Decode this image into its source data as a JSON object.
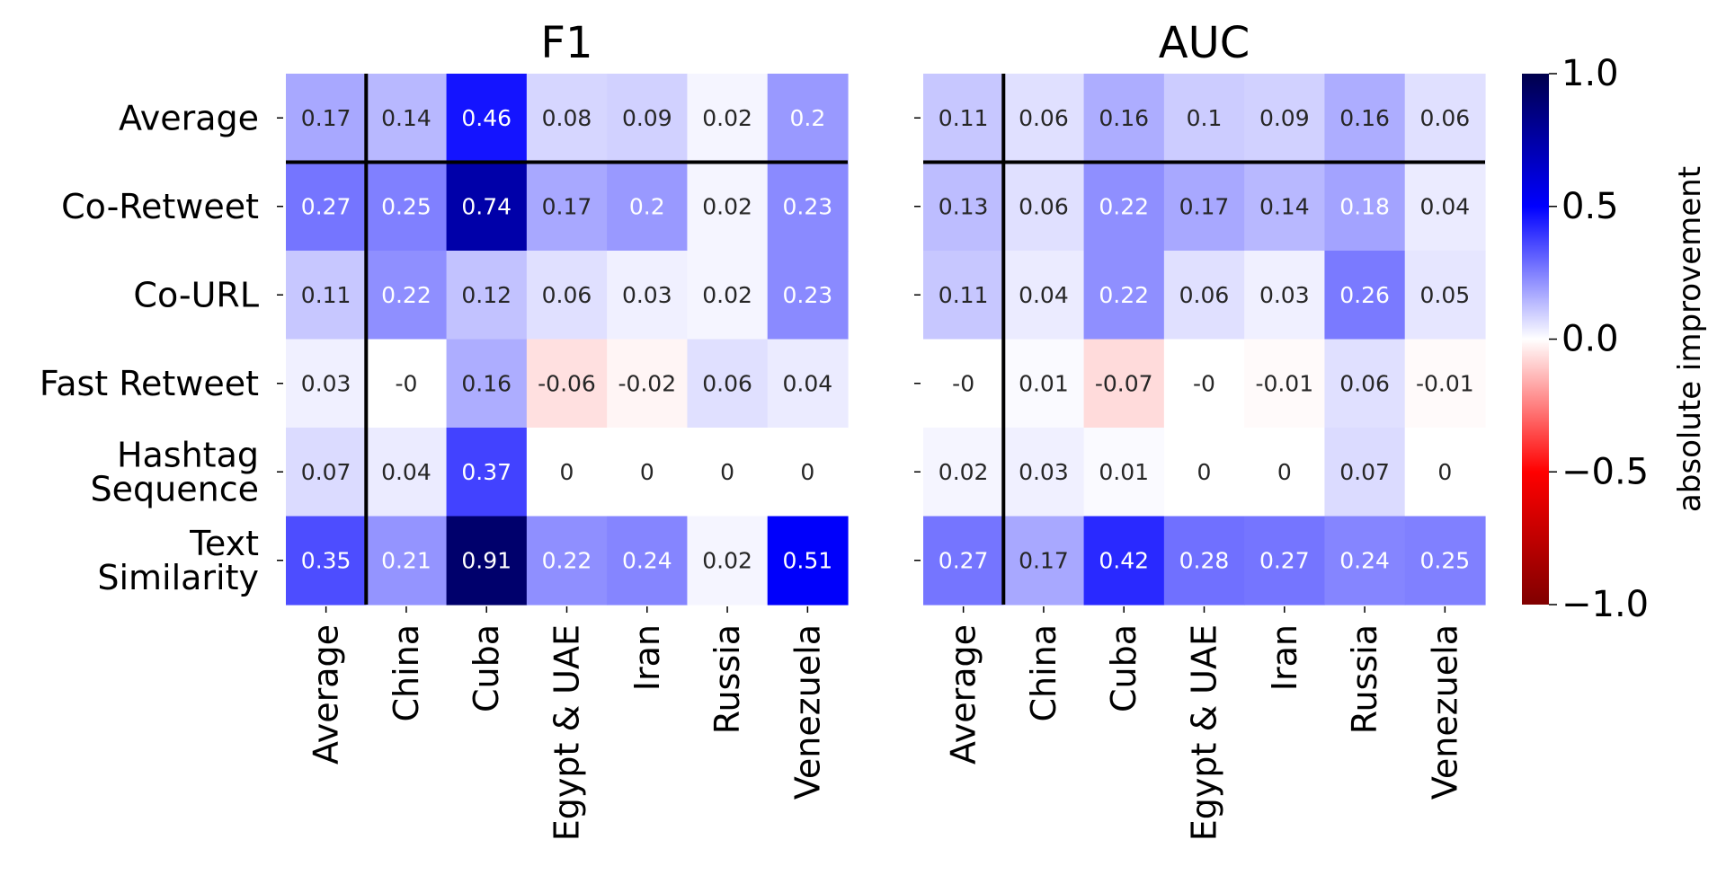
{
  "chart_data": [
    {
      "type": "heatmap",
      "title": "F1",
      "rows": [
        "Average",
        "Co-Retweet",
        "Co-URL",
        "Fast Retweet",
        "Hashtag\nSequence",
        "Text\nSimilarity"
      ],
      "columns": [
        "Average",
        "China",
        "Cuba",
        "Egypt & UAE",
        "Iran",
        "Russia",
        "Venezuela"
      ],
      "values": [
        [
          0.17,
          0.14,
          0.46,
          0.08,
          0.09,
          0.02,
          0.2
        ],
        [
          0.27,
          0.25,
          0.74,
          0.17,
          0.2,
          0.02,
          0.23
        ],
        [
          0.11,
          0.22,
          0.12,
          0.06,
          0.03,
          0.02,
          0.23
        ],
        [
          0.03,
          -0.0,
          0.16,
          -0.06,
          -0.02,
          0.06,
          0.04
        ],
        [
          0.07,
          0.04,
          0.37,
          0.0,
          0.0,
          0.0,
          0.0
        ],
        [
          0.35,
          0.21,
          0.91,
          0.22,
          0.24,
          0.02,
          0.51
        ]
      ],
      "labels": [
        [
          "0.17",
          "0.14",
          "0.46",
          "0.08",
          "0.09",
          "0.02",
          "0.2"
        ],
        [
          "0.27",
          "0.25",
          "0.74",
          "0.17",
          "0.2",
          "0.02",
          "0.23"
        ],
        [
          "0.11",
          "0.22",
          "0.12",
          "0.06",
          "0.03",
          "0.02",
          "0.23"
        ],
        [
          "0.03",
          "-0",
          "0.16",
          "-0.06",
          "-0.02",
          "0.06",
          "0.04"
        ],
        [
          "0.07",
          "0.04",
          "0.37",
          "0",
          "0",
          "0",
          "0"
        ],
        [
          "0.35",
          "0.21",
          "0.91",
          "0.22",
          "0.24",
          "0.02",
          "0.51"
        ]
      ],
      "separators": "after first row and first column"
    },
    {
      "type": "heatmap",
      "title": "AUC",
      "rows": [
        "Average",
        "Co-Retweet",
        "Co-URL",
        "Fast Retweet",
        "Hashtag\nSequence",
        "Text\nSimilarity"
      ],
      "columns": [
        "Average",
        "China",
        "Cuba",
        "Egypt & UAE",
        "Iran",
        "Russia",
        "Venezuela"
      ],
      "values": [
        [
          0.11,
          0.06,
          0.16,
          0.1,
          0.09,
          0.16,
          0.06
        ],
        [
          0.13,
          0.06,
          0.22,
          0.17,
          0.14,
          0.18,
          0.04
        ],
        [
          0.11,
          0.04,
          0.22,
          0.06,
          0.03,
          0.26,
          0.05
        ],
        [
          -0.0,
          0.01,
          -0.07,
          -0.0,
          -0.01,
          0.06,
          -0.01
        ],
        [
          0.02,
          0.03,
          0.01,
          0.0,
          0.0,
          0.07,
          0.0
        ],
        [
          0.27,
          0.17,
          0.42,
          0.28,
          0.27,
          0.24,
          0.25
        ]
      ],
      "labels": [
        [
          "0.11",
          "0.06",
          "0.16",
          "0.1",
          "0.09",
          "0.16",
          "0.06"
        ],
        [
          "0.13",
          "0.06",
          "0.22",
          "0.17",
          "0.14",
          "0.18",
          "0.04"
        ],
        [
          "0.11",
          "0.04",
          "0.22",
          "0.06",
          "0.03",
          "0.26",
          "0.05"
        ],
        [
          "-0",
          "0.01",
          "-0.07",
          "-0",
          "-0.01",
          "0.06",
          "-0.01"
        ],
        [
          "0.02",
          "0.03",
          "0.01",
          "0",
          "0",
          "0.07",
          "0"
        ],
        [
          "0.27",
          "0.17",
          "0.42",
          "0.28",
          "0.27",
          "0.24",
          "0.25"
        ]
      ],
      "separators": "after first row and first column"
    }
  ],
  "colorbar": {
    "label": "absolute improvement",
    "vmin": -1.0,
    "vmax": 1.0,
    "colormap": "seismic_r",
    "ticks": [
      1.0,
      0.5,
      0.0,
      -0.5,
      -1.0
    ],
    "tick_labels": [
      "1.0",
      "0.5",
      "0.0",
      "−0.5",
      "−1.0"
    ]
  },
  "colors": {
    "text_light": "#ffffff",
    "text_dark": "#262626",
    "separator": "#000000"
  }
}
